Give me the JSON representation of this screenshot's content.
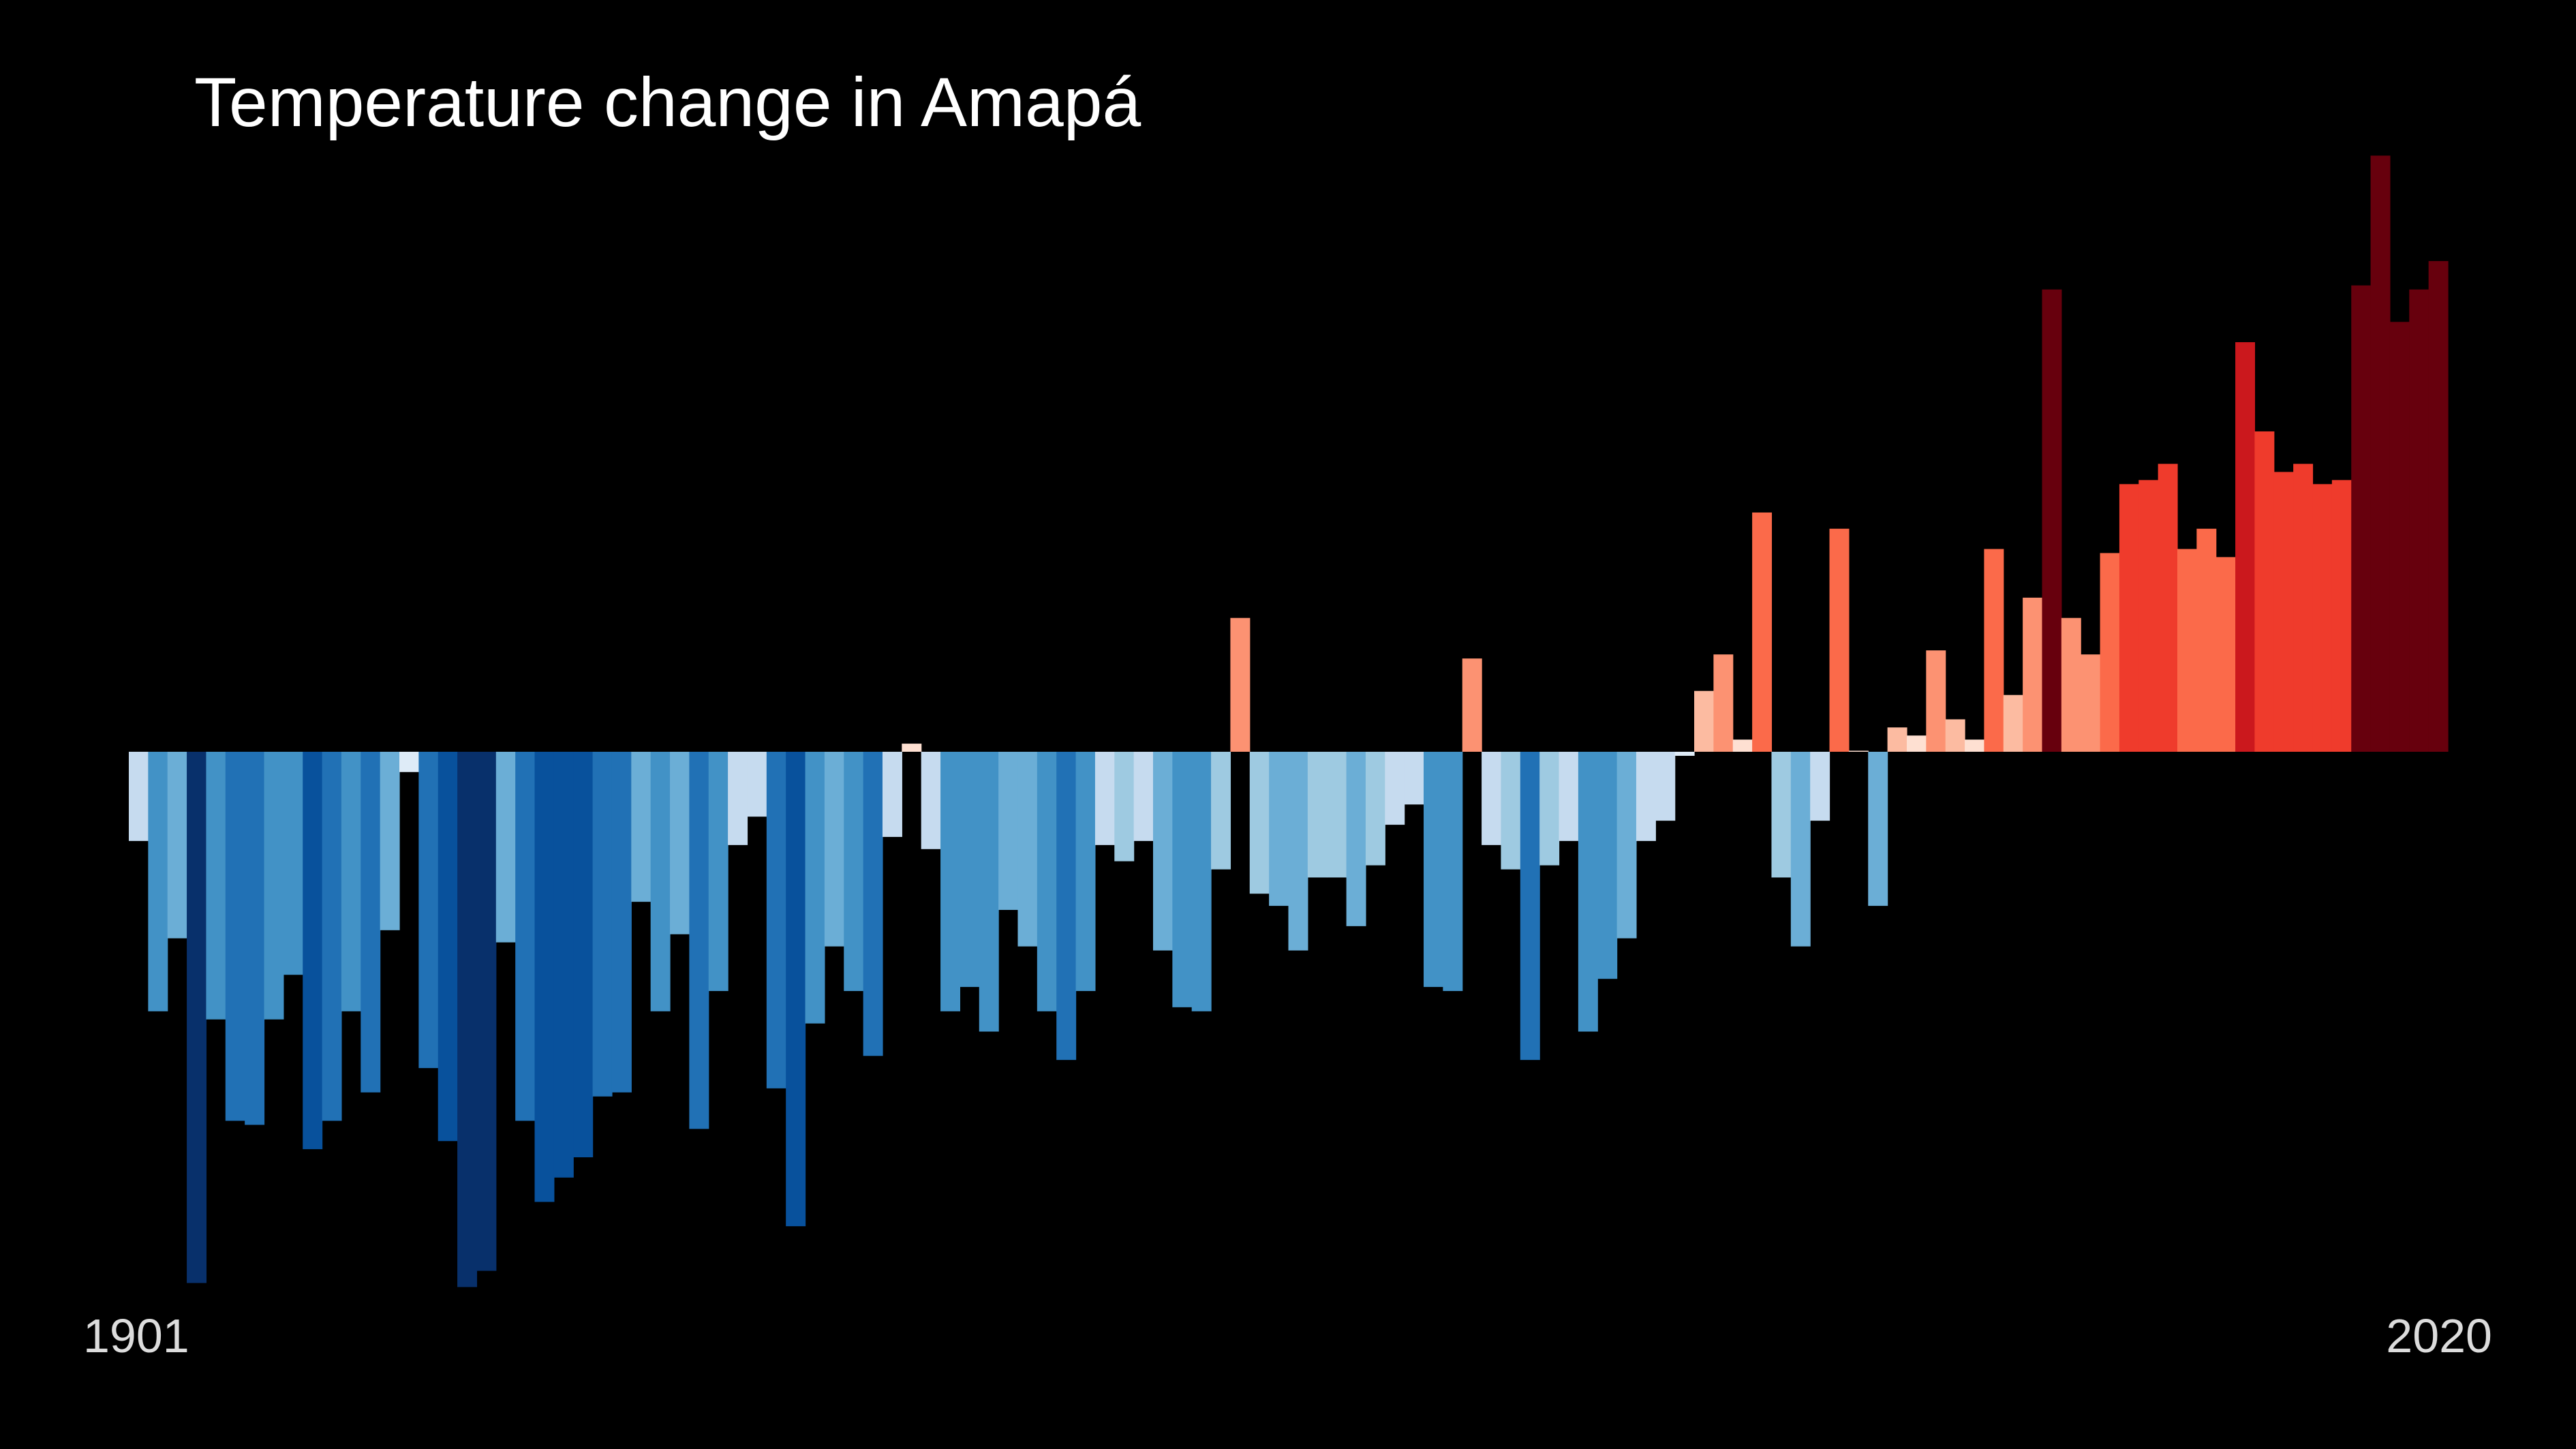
{
  "title": "Temperature change in Amapá",
  "x_start_label": "1901",
  "x_end_label": "2020",
  "chart_data": {
    "type": "bar",
    "title": "Temperature change in Amapá",
    "xlabel": "",
    "ylabel": "",
    "x_range": [
      1901,
      2020
    ],
    "ylim": [
      -1.33,
      1.47
    ],
    "grid": false,
    "legend": "none",
    "colors": {
      "background": "#000000",
      "cold_extreme": "#08306b",
      "warm_extreme": "#67000d"
    },
    "values": [
      -0.22,
      -0.64,
      -0.46,
      -1.31,
      -0.66,
      -0.91,
      -0.92,
      -0.66,
      -0.55,
      -0.98,
      -0.91,
      -0.64,
      -0.84,
      -0.44,
      -0.05,
      -0.78,
      -0.96,
      -1.32,
      -1.28,
      -0.47,
      -0.91,
      -1.11,
      -1.05,
      -1.0,
      -0.85,
      -0.84,
      -0.37,
      -0.64,
      -0.45,
      -0.93,
      -0.59,
      -0.23,
      -0.16,
      -0.83,
      -1.17,
      -0.67,
      -0.48,
      -0.59,
      -0.75,
      -0.21,
      0.02,
      -0.24,
      -0.64,
      -0.58,
      -0.69,
      -0.39,
      -0.48,
      -0.64,
      -0.76,
      -0.59,
      -0.23,
      -0.27,
      -0.22,
      -0.49,
      -0.63,
      -0.64,
      -0.29,
      0.33,
      -0.35,
      -0.38,
      -0.49,
      -0.31,
      -0.31,
      -0.43,
      -0.28,
      -0.18,
      -0.13,
      -0.58,
      -0.59,
      0.23,
      -0.23,
      -0.29,
      -0.76,
      -0.28,
      -0.22,
      -0.69,
      -0.56,
      -0.46,
      -0.22,
      -0.17,
      -0.01,
      0.15,
      0.24,
      0.03,
      0.59,
      -0.31,
      -0.48,
      -0.17,
      0.55,
      0.0,
      -0.38,
      0.06,
      0.04,
      0.25,
      0.08,
      0.03,
      0.5,
      0.14,
      0.38,
      1.14,
      0.33,
      0.24,
      0.49,
      0.66,
      0.67,
      0.71,
      0.5,
      0.55,
      0.48,
      1.01,
      0.79,
      0.69,
      0.71,
      0.66,
      0.67,
      1.15,
      1.47,
      1.06,
      1.14,
      1.21
    ]
  }
}
